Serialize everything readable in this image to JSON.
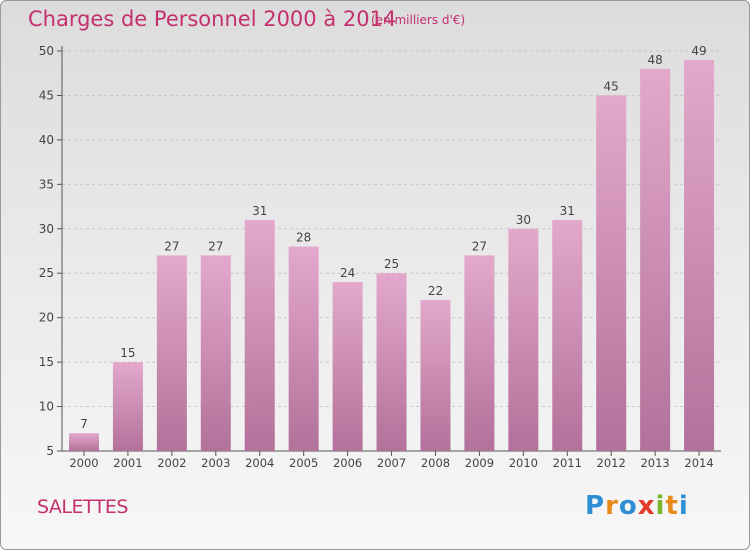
{
  "chart_data": {
    "type": "bar",
    "title": "Charges de Personnel 2000 à 2014",
    "subtitle": "(en milliers d'€)",
    "categories": [
      "2000",
      "2001",
      "2002",
      "2003",
      "2004",
      "2005",
      "2006",
      "2007",
      "2008",
      "2009",
      "2010",
      "2011",
      "2012",
      "2013",
      "2014"
    ],
    "values": [
      7,
      15,
      27,
      27,
      31,
      28,
      24,
      25,
      22,
      27,
      30,
      31,
      45,
      48,
      49
    ],
    "ylim": [
      5,
      50
    ],
    "yticks": [
      5,
      10,
      15,
      20,
      25,
      30,
      35,
      40,
      45,
      50
    ],
    "xlabel": "",
    "ylabel": "",
    "grid": true,
    "bar_color": "#c77aa3"
  },
  "location": "SALETTES",
  "logo": {
    "text": "Proxiti",
    "letters": [
      {
        "ch": "P",
        "color": "#2f8fd6"
      },
      {
        "ch": "r",
        "color": "#e88a1a"
      },
      {
        "ch": "o",
        "color": "#2f8fd6"
      },
      {
        "ch": "x",
        "color": "#e23b2a"
      },
      {
        "ch": "i",
        "color": "#7bb52b"
      },
      {
        "ch": "t",
        "color": "#e88a1a"
      },
      {
        "ch": "i",
        "color": "#2f8fd6"
      }
    ]
  }
}
